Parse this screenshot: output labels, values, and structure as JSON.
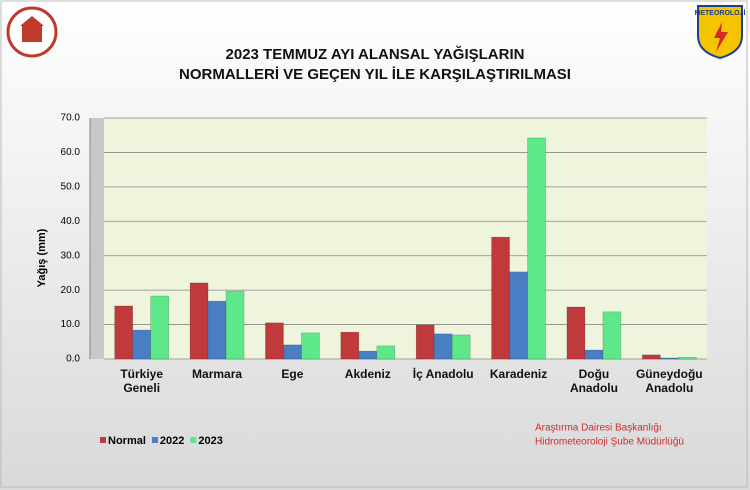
{
  "chart_data": {
    "type": "bar",
    "title": [
      "2023 TEMMUZ AYI ALANSAL YAĞIŞLARIN",
      "NORMALLERİ VE GEÇEN YIL İLE KARŞILAŞTIRILMASI"
    ],
    "y_label": "Yağış (mm)",
    "categories": [
      "Türkiye Geneli",
      "Marmara",
      "Ege",
      "Akdeniz",
      "İç Anadolu",
      "Karadeniz",
      "Doğu Anadolu",
      "Güneydoğu Anadolu"
    ],
    "series": [
      {
        "name": "Normal",
        "color": "#c0393b",
        "values": [
          15.4,
          22.1,
          10.5,
          7.8,
          9.9,
          35.4,
          15.1,
          1.2
        ]
      },
      {
        "name": "2022",
        "color": "#4a7ec4",
        "values": [
          8.4,
          16.8,
          4.1,
          2.3,
          7.3,
          25.3,
          2.6,
          0.3
        ]
      },
      {
        "name": "2023",
        "color": "#5ee88a",
        "values": [
          18.3,
          19.7,
          7.6,
          3.8,
          7.0,
          64.2,
          13.7,
          0.5
        ]
      }
    ],
    "ylim": [
      0,
      70
    ],
    "yticks": [
      {
        "value": 0,
        "label": "0.0"
      },
      {
        "value": 10,
        "label": "10.0"
      },
      {
        "value": 20,
        "label": "20.0"
      },
      {
        "value": 30,
        "label": "30.0"
      },
      {
        "value": 40,
        "label": "40.0"
      },
      {
        "value": 50,
        "label": "50.0"
      },
      {
        "value": 60,
        "label": "60.0"
      },
      {
        "value": 70,
        "label": "70.0"
      }
    ],
    "grid": true,
    "legend": "bottom-left",
    "footer": [
      "Araştırma Dairesi Başkanlığı",
      "Hidrometeoroloji Şube Müdürlüğü"
    ],
    "logo_text": "METEOROLOJİ"
  }
}
